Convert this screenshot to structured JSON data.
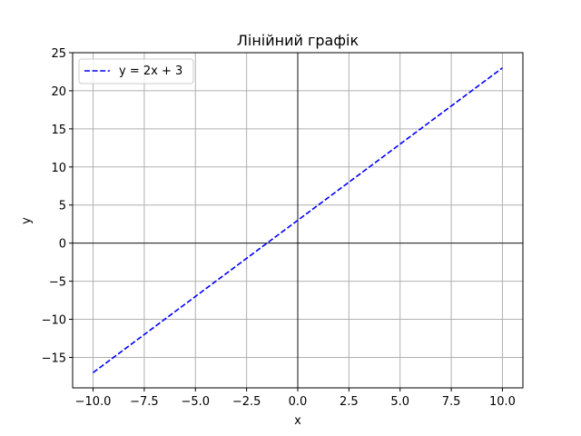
{
  "chart_data": {
    "type": "line",
    "title": "Лінійний графік",
    "xlabel": "x",
    "ylabel": "y",
    "xlim": [
      -11,
      11
    ],
    "ylim": [
      -19,
      25
    ],
    "grid": true,
    "zero_lines": true,
    "xticks": [
      -10,
      -7.5,
      -5,
      -2.5,
      0,
      2.5,
      5,
      7.5,
      10
    ],
    "xtick_labels": [
      "−10.0",
      "−7.5",
      "−5.0",
      "−2.5",
      "0.0",
      "2.5",
      "5.0",
      "7.5",
      "10.0"
    ],
    "yticks": [
      -15,
      -10,
      -5,
      0,
      5,
      10,
      15,
      20,
      25
    ],
    "ytick_labels": [
      "−15",
      "−10",
      "−5",
      "0",
      "5",
      "10",
      "15",
      "20",
      "25"
    ],
    "legend_position": "top-left",
    "series": [
      {
        "name": "y = 2x + 3",
        "color": "#0000ff",
        "line_style": "dashed",
        "x": [
          -10,
          10
        ],
        "y": [
          -17,
          23
        ]
      }
    ]
  },
  "colors": {
    "grid": "#b0b0b0",
    "axes": "#000000",
    "background": "#ffffff"
  }
}
